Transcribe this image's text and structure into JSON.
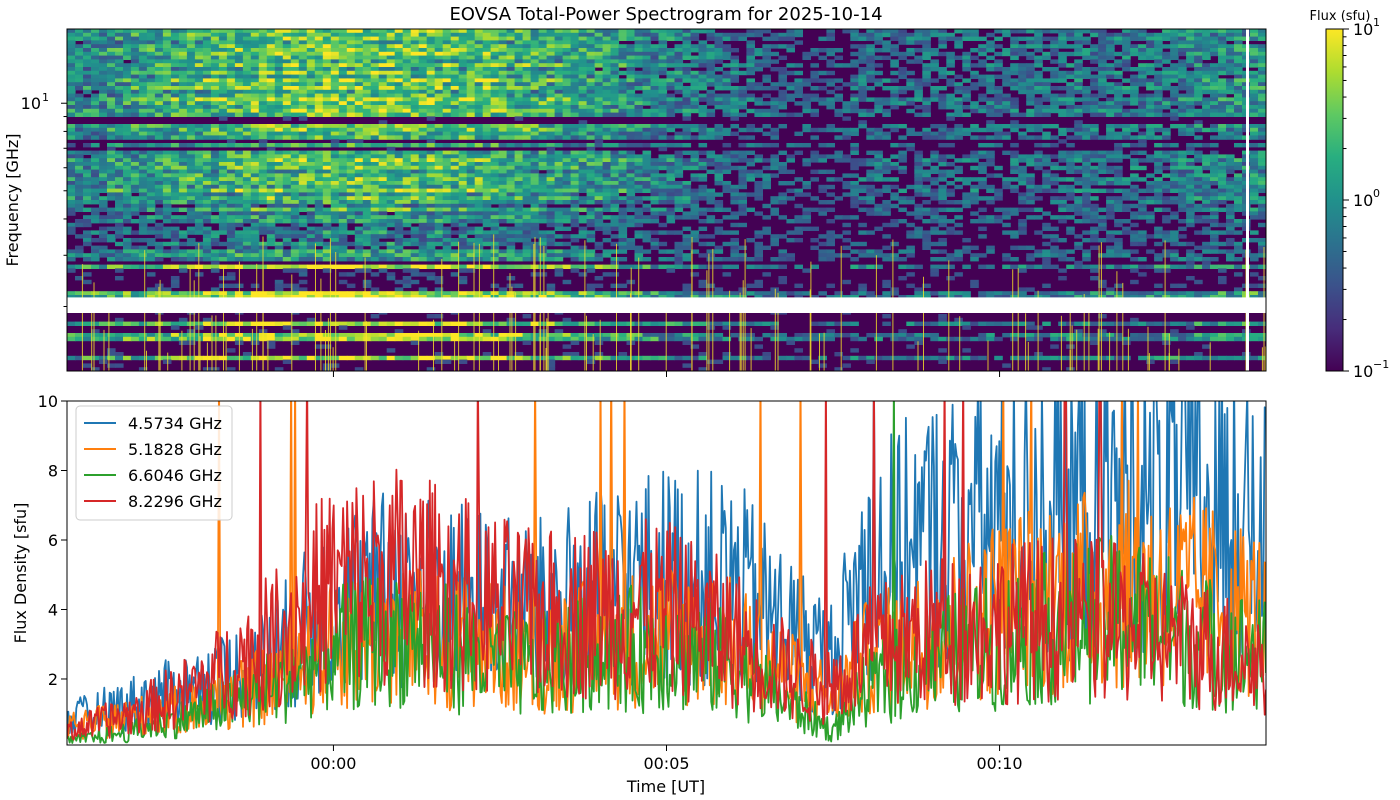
{
  "chart_data": [
    {
      "type": "heatmap",
      "title": "EOVSA Total-Power Spectrogram for 2025-10-14",
      "ylabel": "Frequency [GHz]",
      "yscale": "log",
      "ylim": [
        1.2,
        18
      ],
      "yticks": [
        {
          "value": 10,
          "base": "10",
          "exp": "1"
        }
      ],
      "xlim_minutes": [
        -4,
        14
      ],
      "gap_ghz": [
        1.9,
        2.15
      ],
      "colorbar": {
        "label": "Flux (sfu)",
        "scale": "log",
        "range": [
          0.1,
          10
        ],
        "ticks": [
          {
            "value": 10,
            "base": "10",
            "exp": "1"
          },
          {
            "value": 1,
            "base": "10",
            "exp": "0"
          },
          {
            "value": 0.1,
            "base": "10",
            "exp": "−1"
          }
        ],
        "colormap": "viridis"
      }
    },
    {
      "type": "line",
      "xlabel": "Time [UT]",
      "ylabel": "Flux Density [sfu]",
      "ylim": [
        0.1,
        10
      ],
      "xlim_minutes": [
        -4,
        14
      ],
      "xticks": [
        {
          "value": 0,
          "label": "00:00"
        },
        {
          "value": 5,
          "label": "00:05"
        },
        {
          "value": 10,
          "label": "00:10"
        }
      ],
      "yticks": [
        {
          "value": 2,
          "label": "2"
        },
        {
          "value": 4,
          "label": "4"
        },
        {
          "value": 6,
          "label": "6"
        },
        {
          "value": 8,
          "label": "8"
        },
        {
          "value": 10,
          "label": "10"
        }
      ],
      "legend_position": "top-left",
      "series": [
        {
          "name": "4.5734 GHz",
          "color": "#1f77b4",
          "x": [
            -4,
            -3,
            -2,
            -1,
            0,
            1,
            2,
            3,
            4,
            5,
            6,
            7,
            7.5,
            8,
            9,
            10,
            11,
            12,
            13,
            14
          ],
          "y": [
            0.8,
            1.3,
            1.8,
            2.5,
            4.2,
            4.6,
            4.3,
            4.0,
            4.6,
            5.0,
            4.8,
            3.2,
            2.6,
            5.2,
            6.2,
            6.6,
            7.0,
            7.3,
            7.0,
            6.0
          ]
        },
        {
          "name": "5.1828 GHz",
          "color": "#ff7f0e",
          "x": [
            -4,
            -3,
            -2,
            -1,
            0,
            1,
            2,
            3,
            4,
            5,
            6,
            7,
            7.5,
            8,
            9,
            10,
            11,
            12,
            13,
            14
          ],
          "y": [
            0.6,
            0.9,
            1.2,
            1.8,
            3.0,
            3.2,
            3.1,
            2.7,
            3.0,
            3.3,
            3.0,
            1.9,
            1.5,
            2.6,
            3.3,
            4.1,
            4.5,
            4.7,
            4.4,
            3.8
          ]
        },
        {
          "name": "6.6046 GHz",
          "color": "#2ca02c",
          "x": [
            -4,
            -3,
            -2,
            -1,
            0,
            1,
            2,
            3,
            4,
            5,
            6,
            7,
            7.5,
            8,
            9,
            10,
            11,
            12,
            13,
            14
          ],
          "y": [
            0.2,
            0.5,
            1.0,
            1.7,
            2.8,
            3.3,
            2.7,
            2.3,
            2.8,
            2.9,
            2.4,
            1.1,
            0.5,
            1.7,
            2.6,
            3.1,
            3.6,
            3.8,
            3.1,
            2.6
          ]
        },
        {
          "name": "8.2296 GHz",
          "color": "#d62728",
          "x": [
            -4,
            -3,
            -2,
            -1,
            0,
            1,
            2,
            3,
            4,
            5,
            6,
            7,
            7.5,
            8,
            9,
            10,
            11,
            12,
            13,
            14
          ],
          "y": [
            0.5,
            1.0,
            1.8,
            3.0,
            4.8,
            5.0,
            4.4,
            3.8,
            4.0,
            4.0,
            3.2,
            2.0,
            1.8,
            2.8,
            3.4,
            3.6,
            3.8,
            3.5,
            3.0,
            2.4
          ]
        }
      ]
    }
  ]
}
